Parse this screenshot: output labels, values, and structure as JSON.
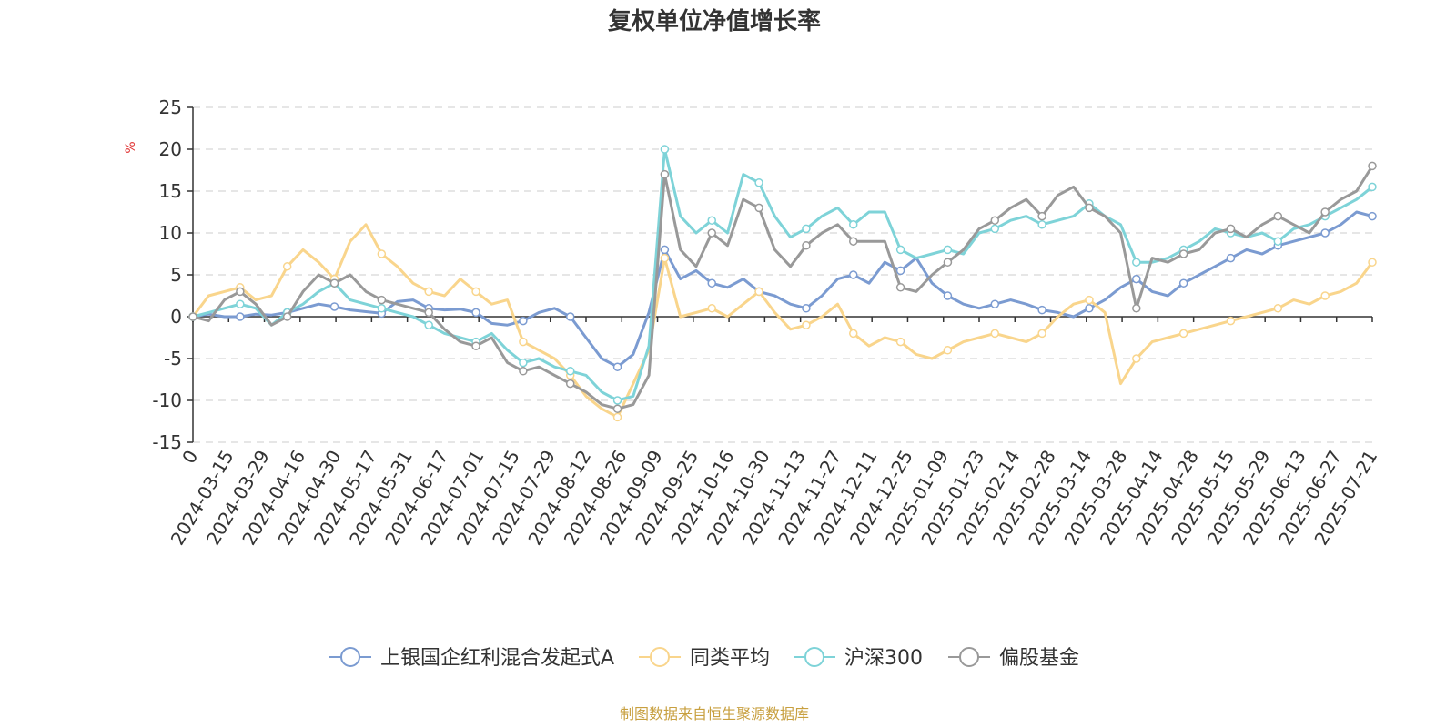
{
  "chart_data": {
    "type": "line",
    "title": "复权单位净值增长率",
    "yunit": "%",
    "ylim": [
      -15,
      25
    ],
    "yticks": [
      25,
      20,
      15,
      10,
      5,
      0,
      -5,
      -10,
      -15
    ],
    "xtick_labels": [
      "0",
      "2024-03-15",
      "2024-03-29",
      "2024-04-16",
      "2024-04-30",
      "2024-05-17",
      "2024-05-31",
      "2024-06-17",
      "2024-07-01",
      "2024-07-15",
      "2024-07-29",
      "2024-08-12",
      "2024-08-26",
      "2024-09-09",
      "2024-09-25",
      "2024-10-16",
      "2024-10-30",
      "2024-11-13",
      "2024-11-27",
      "2024-12-11",
      "2024-12-25",
      "2025-01-09",
      "2025-01-23",
      "2025-02-14",
      "2025-02-28",
      "2025-03-14",
      "2025-03-28",
      "2025-04-14",
      "2025-04-28",
      "2025-05-15",
      "2025-05-29",
      "2025-06-13",
      "2025-06-27",
      "2025-07-21"
    ],
    "grid": true,
    "legend_position": "bottom",
    "series": [
      {
        "name": "上银国企红利混合发起式A",
        "color": "#7b9bd1",
        "values": [
          0,
          0.3,
          0,
          0,
          0.3,
          0.2,
          0.5,
          1.0,
          1.5,
          1.2,
          0.8,
          0.6,
          0.4,
          1.8,
          2.0,
          1.0,
          0.8,
          0.9,
          0.5,
          -0.8,
          -1.0,
          -0.5,
          0.5,
          1.0,
          0,
          -2.5,
          -5.0,
          -6.0,
          -4.5,
          0.5,
          8.0,
          4.5,
          5.5,
          4.0,
          3.5,
          4.5,
          3.0,
          2.5,
          1.5,
          1.0,
          2.5,
          4.5,
          5.0,
          4.0,
          6.5,
          5.5,
          7.0,
          4.0,
          2.5,
          1.5,
          1.0,
          1.5,
          2.0,
          1.5,
          0.8,
          0.5,
          0,
          1.0,
          2.0,
          3.5,
          4.5,
          3.0,
          2.5,
          4.0,
          5.0,
          6.0,
          7.0,
          8.0,
          7.5,
          8.5,
          9.0,
          9.5,
          10.0,
          11.0,
          12.5,
          12.0
        ]
      },
      {
        "name": "同类平均",
        "color": "#f9d58c",
        "values": [
          0,
          2.5,
          3.0,
          3.5,
          2.0,
          2.5,
          6.0,
          8.0,
          6.5,
          4.5,
          9.0,
          11.0,
          7.5,
          6.0,
          4.0,
          3.0,
          2.5,
          4.5,
          3.0,
          1.5,
          2.0,
          -3.0,
          -4.0,
          -5.0,
          -7.0,
          -9.5,
          -11.0,
          -12.0,
          -8.0,
          -4.0,
          7.0,
          0,
          0.5,
          1.0,
          0,
          1.5,
          3.0,
          0.5,
          -1.5,
          -1.0,
          0,
          1.5,
          -2.0,
          -3.5,
          -2.5,
          -3.0,
          -4.5,
          -5.0,
          -4.0,
          -3.0,
          -2.5,
          -2.0,
          -2.5,
          -3.0,
          -2.0,
          0,
          1.5,
          2.0,
          0.5,
          -8.0,
          -5.0,
          -3.0,
          -2.5,
          -2.0,
          -1.5,
          -1.0,
          -0.5,
          0,
          0.5,
          1.0,
          2.0,
          1.5,
          2.5,
          3.0,
          4.0,
          6.5
        ]
      },
      {
        "name": "沪深300",
        "color": "#7ed3d8",
        "values": [
          0,
          0.5,
          1.0,
          1.5,
          1.0,
          -1.0,
          0.5,
          1.5,
          3.0,
          4.0,
          2.0,
          1.5,
          1.0,
          0.5,
          0,
          -1.0,
          -2.0,
          -2.5,
          -3.0,
          -2.0,
          -4.0,
          -5.5,
          -5.0,
          -6.0,
          -6.5,
          -7.0,
          -9.0,
          -10.0,
          -9.5,
          -3.5,
          20.0,
          12.0,
          10.0,
          11.5,
          10.0,
          17.0,
          16.0,
          12.0,
          9.5,
          10.5,
          12.0,
          13.0,
          11.0,
          12.5,
          12.5,
          8.0,
          7.0,
          7.5,
          8.0,
          7.5,
          10.0,
          10.5,
          11.5,
          12.0,
          11.0,
          11.5,
          12.0,
          13.5,
          12.0,
          11.0,
          6.5,
          6.5,
          7.0,
          8.0,
          9.0,
          10.5,
          10.0,
          9.5,
          10.0,
          9.0,
          10.5,
          11.0,
          12.0,
          13.0,
          14.0,
          15.5
        ]
      },
      {
        "name": "偏股基金",
        "color": "#999999",
        "values": [
          0,
          -0.5,
          2.0,
          3.0,
          1.5,
          -1.0,
          0,
          3.0,
          5.0,
          4.0,
          5.0,
          3.0,
          2.0,
          1.5,
          1.0,
          0.5,
          -1.5,
          -3.0,
          -3.5,
          -2.5,
          -5.5,
          -6.5,
          -6.0,
          -7.0,
          -8.0,
          -9.0,
          -10.5,
          -11.0,
          -10.5,
          -7.0,
          17.0,
          8.0,
          6.0,
          10.0,
          8.5,
          14.0,
          13.0,
          8.0,
          6.0,
          8.5,
          10.0,
          11.0,
          9.0,
          9.0,
          9.0,
          3.5,
          3.0,
          5.0,
          6.5,
          8.0,
          10.5,
          11.5,
          13.0,
          14.0,
          12.0,
          14.5,
          15.5,
          13.0,
          12.0,
          10.0,
          1.0,
          7.0,
          6.5,
          7.5,
          8.0,
          10.0,
          10.5,
          9.5,
          11.0,
          12.0,
          11.0,
          10.0,
          12.5,
          14.0,
          15.0,
          18.0
        ]
      }
    ]
  },
  "source_text": "制图数据来自恒生聚源数据库",
  "colors": {
    "axis": "#333333",
    "grid": "#cccccc",
    "unit": "#e03030",
    "source": "#c8a040"
  }
}
